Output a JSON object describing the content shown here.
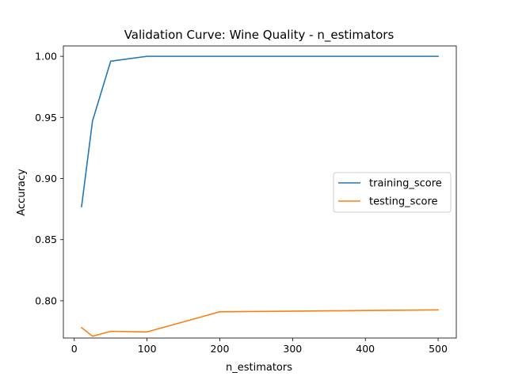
{
  "chart_data": {
    "type": "line",
    "title": "Validation Curve: Wine Quality - n_estimators",
    "xlabel": "n_estimators",
    "ylabel": "Accuracy",
    "xlim": [
      -15,
      525
    ],
    "ylim": [
      0.7695,
      1.0085
    ],
    "xticks": [
      0,
      100,
      200,
      300,
      400,
      500
    ],
    "yticks": [
      0.8,
      0.85,
      0.9,
      0.95,
      1.0
    ],
    "ytick_labels": [
      "0.80",
      "0.85",
      "0.90",
      "0.95",
      "1.00"
    ],
    "xtick_labels": [
      "0",
      "100",
      "200",
      "300",
      "400",
      "500"
    ],
    "grid": false,
    "legend": {
      "placement": "center-right"
    },
    "series": [
      {
        "name": "training_score",
        "color": "#1f77b4",
        "x": [
          10,
          25,
          50,
          100,
          200,
          500
        ],
        "values": [
          0.877,
          0.947,
          0.996,
          1.0,
          1.0,
          1.0
        ]
      },
      {
        "name": "testing_score",
        "color": "#ff7f0e",
        "x": [
          10,
          25,
          50,
          100,
          200,
          500
        ],
        "values": [
          0.778,
          0.771,
          0.775,
          0.7745,
          0.791,
          0.7925
        ]
      }
    ]
  }
}
